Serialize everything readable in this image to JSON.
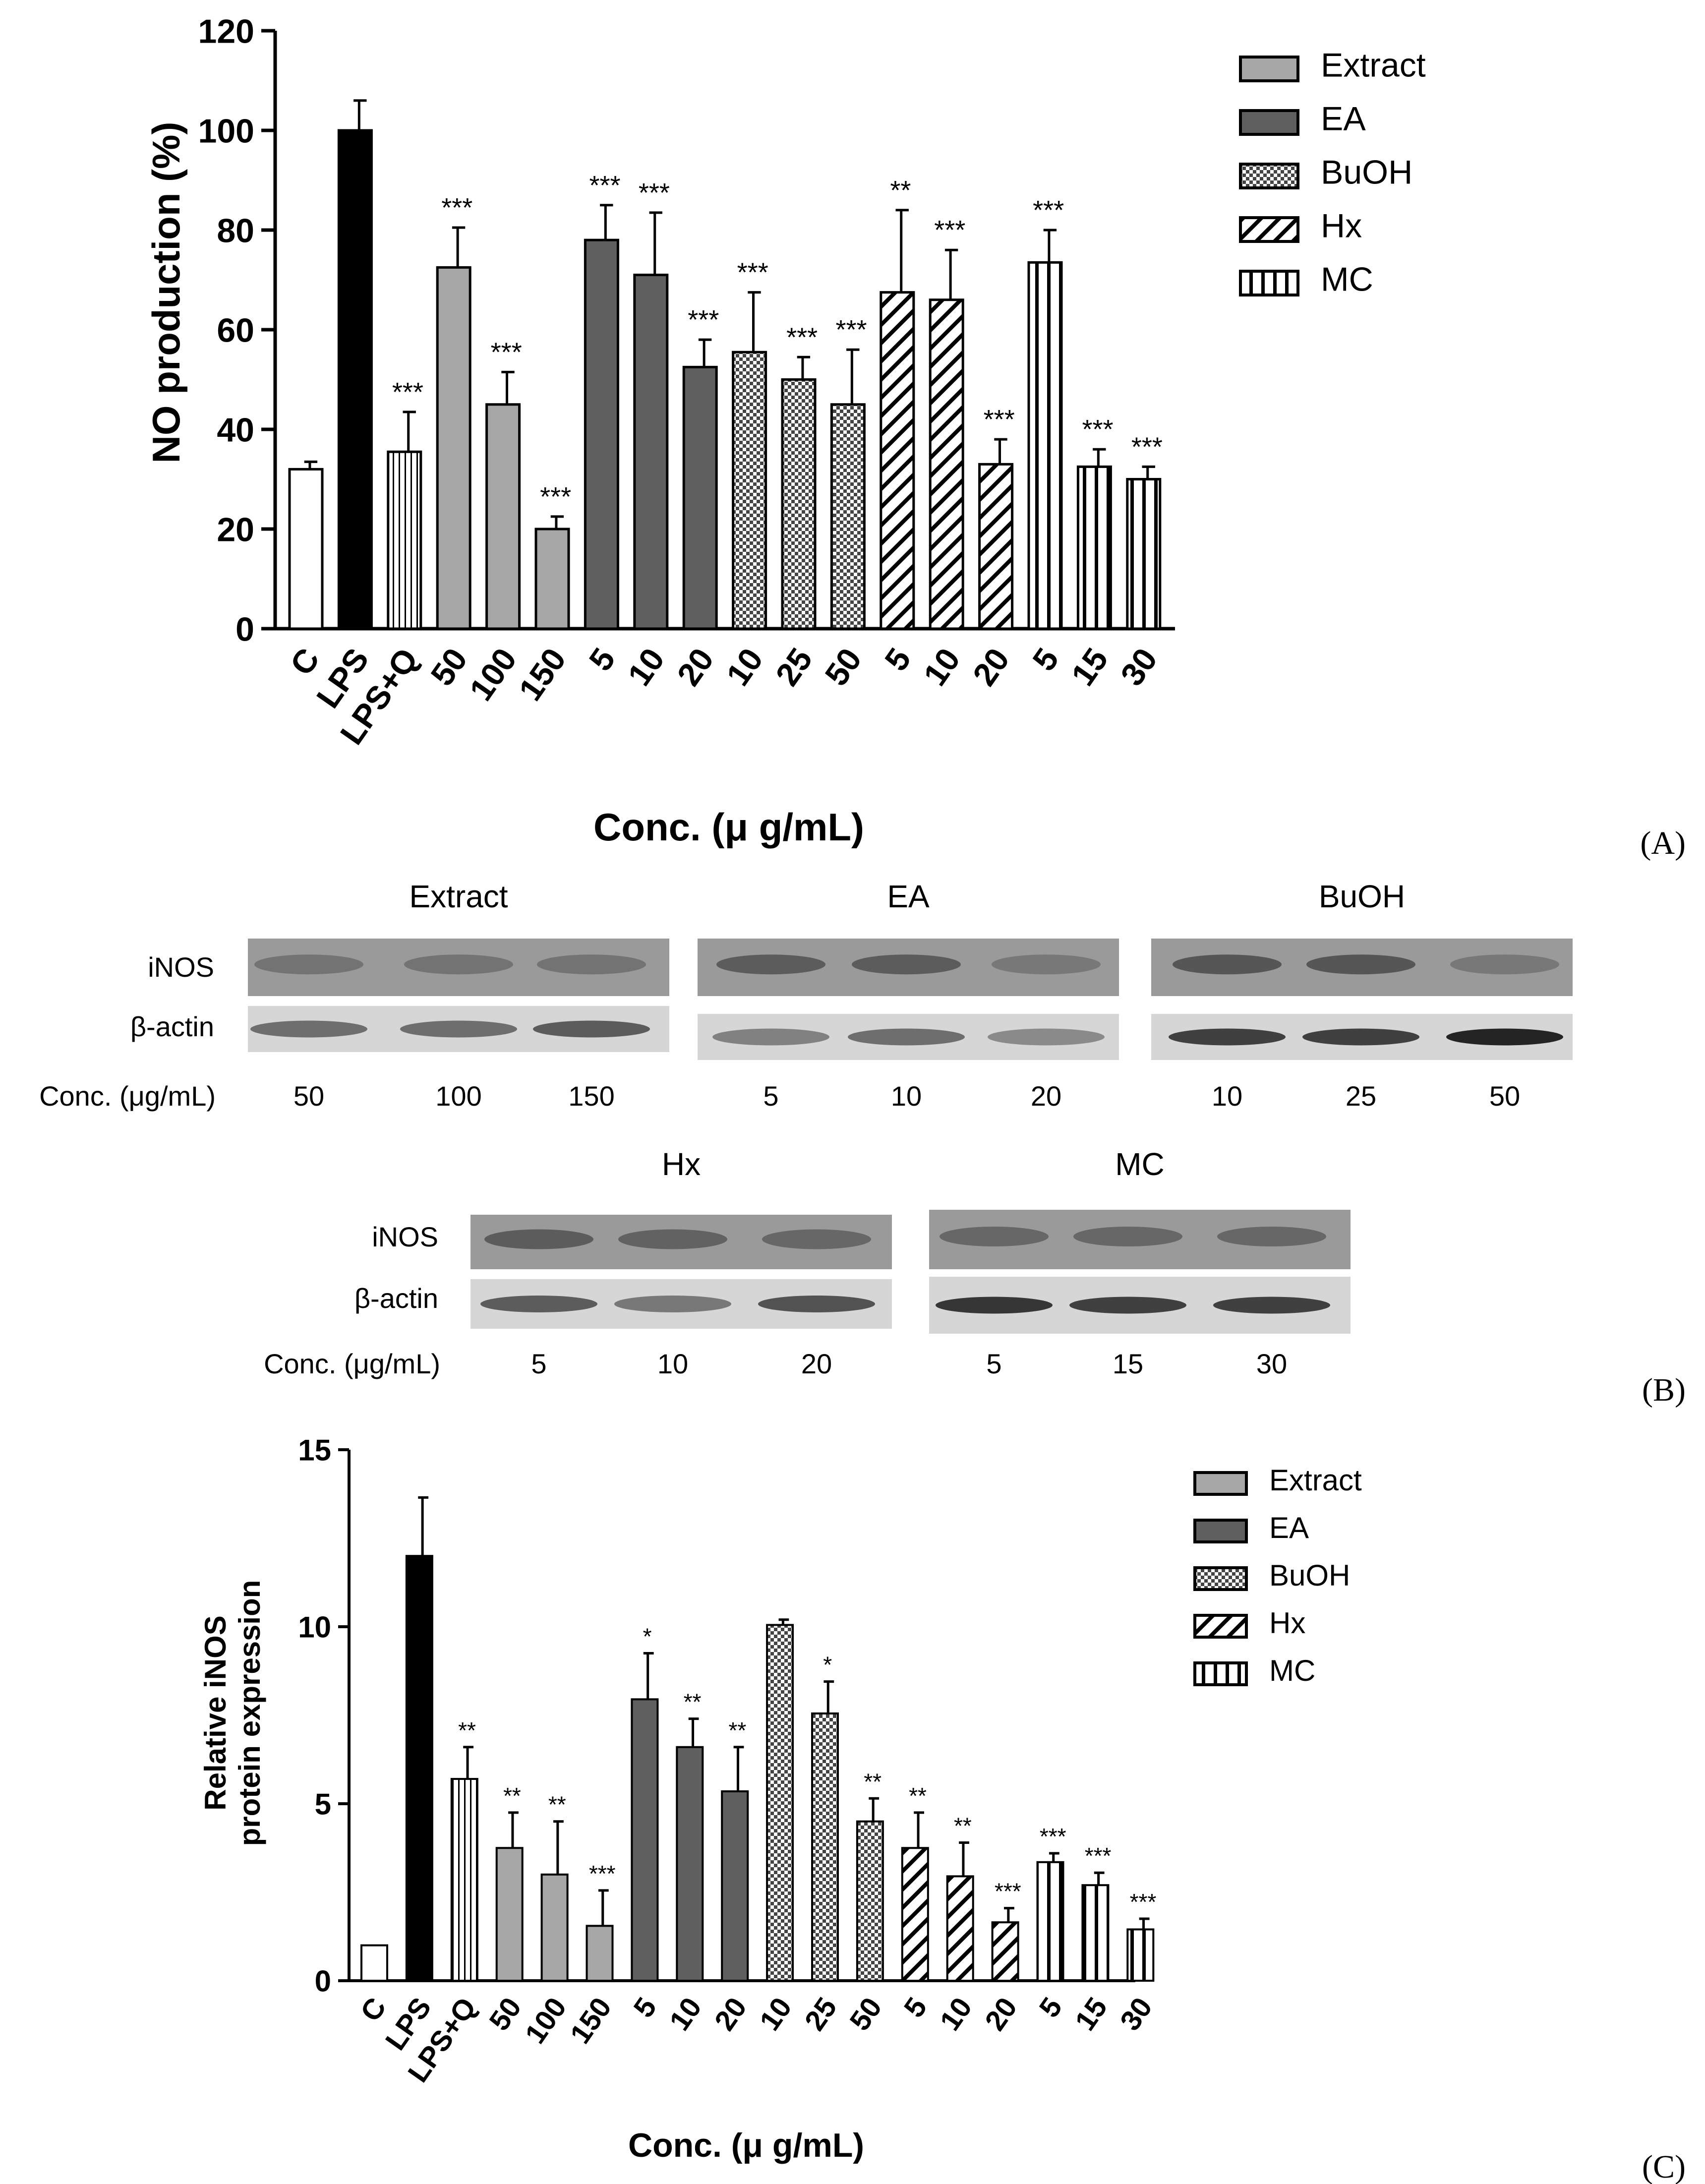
{
  "colors": {
    "Control": "#ffffff",
    "LPS": "#000000",
    "Extract": "#a6a6a6",
    "EA": "#5f5f5f",
    "BuOH": "#ffffff",
    "Hx": "#ffffff",
    "MC": "#ffffff"
  },
  "categories": [
    "C",
    "LPS",
    "LPS+Q",
    "50",
    "100",
    "150",
    "5",
    "10",
    "20",
    "10",
    "25",
    "50",
    "5",
    "10",
    "20",
    "5",
    "15",
    "30"
  ],
  "groups": [
    "Control",
    "LPS",
    "LPS+Q",
    "Extract",
    "Extract",
    "Extract",
    "EA",
    "EA",
    "EA",
    "BuOH",
    "BuOH",
    "BuOH",
    "Hx",
    "Hx",
    "Hx",
    "MC",
    "MC",
    "MC"
  ],
  "chart_data": [
    {
      "type": "bar",
      "panel_label": "(A)",
      "ylabel": "NO production (%)",
      "xlabel": "Conc. (μ g/mL)",
      "ylim": [
        0,
        120
      ],
      "yticks": [
        0,
        20,
        40,
        60,
        80,
        100,
        120
      ],
      "values": [
        32,
        100,
        35.5,
        72.5,
        45,
        20,
        78,
        71,
        52.5,
        55.5,
        50,
        45,
        67.5,
        66,
        33,
        73.5,
        32.5,
        30
      ],
      "errors": [
        1.5,
        6,
        8,
        8,
        6.5,
        2.5,
        7,
        12.5,
        5.5,
        12,
        4.5,
        11,
        16.5,
        10,
        5,
        6.5,
        3.5,
        2.5
      ],
      "significance": [
        "",
        "",
        "***",
        "***",
        "***",
        "***",
        "***",
        "***",
        "***",
        "***",
        "***",
        "***",
        "**",
        "***",
        "***",
        "***",
        "***",
        "***"
      ],
      "legend": [
        "Extract",
        "EA",
        "BuOH",
        "Hx",
        "MC"
      ],
      "legend_position": "top-right"
    },
    {
      "type": "bar",
      "panel_label": "(C)",
      "ylabel_lines": [
        "Relative iNOS",
        "protein expression"
      ],
      "xlabel": "Conc. (μ g/mL)",
      "ylim": [
        0,
        15
      ],
      "yticks": [
        0,
        5,
        10,
        15
      ],
      "values": [
        1,
        12,
        5.7,
        3.75,
        3,
        1.55,
        7.95,
        6.6,
        5.35,
        10.05,
        7.55,
        4.5,
        3.75,
        2.95,
        1.65,
        3.35,
        2.7,
        1.45
      ],
      "errors": [
        0,
        1.65,
        0.9,
        1,
        1.5,
        1,
        1.3,
        0.8,
        1.25,
        0.15,
        0.9,
        0.65,
        1,
        0.95,
        0.4,
        0.25,
        0.35,
        0.3
      ],
      "significance": [
        "",
        "",
        "**",
        "**",
        "**",
        "***",
        "*",
        "**",
        "**",
        "",
        "*",
        "**",
        "**",
        "**",
        "***",
        "***",
        "***",
        "***"
      ],
      "legend": [
        "Extract",
        "EA",
        "BuOH",
        "Hx",
        "MC"
      ],
      "legend_position": "top-right"
    }
  ],
  "western_blot": {
    "panel_label": "(B)",
    "row_labels": [
      "iNOS",
      "β-actin"
    ],
    "conc_label": "Conc. (μg/mL)",
    "top_row": [
      {
        "title": "Extract",
        "lanes": [
          "50",
          "100",
          "150"
        ]
      },
      {
        "title": "EA",
        "lanes": [
          "5",
          "10",
          "20"
        ]
      },
      {
        "title": "BuOH",
        "lanes": [
          "10",
          "25",
          "50"
        ]
      }
    ],
    "bottom_row": [
      {
        "title": "Hx",
        "lanes": [
          "5",
          "10",
          "20"
        ]
      },
      {
        "title": "MC",
        "lanes": [
          "5",
          "15",
          "30"
        ]
      }
    ]
  }
}
